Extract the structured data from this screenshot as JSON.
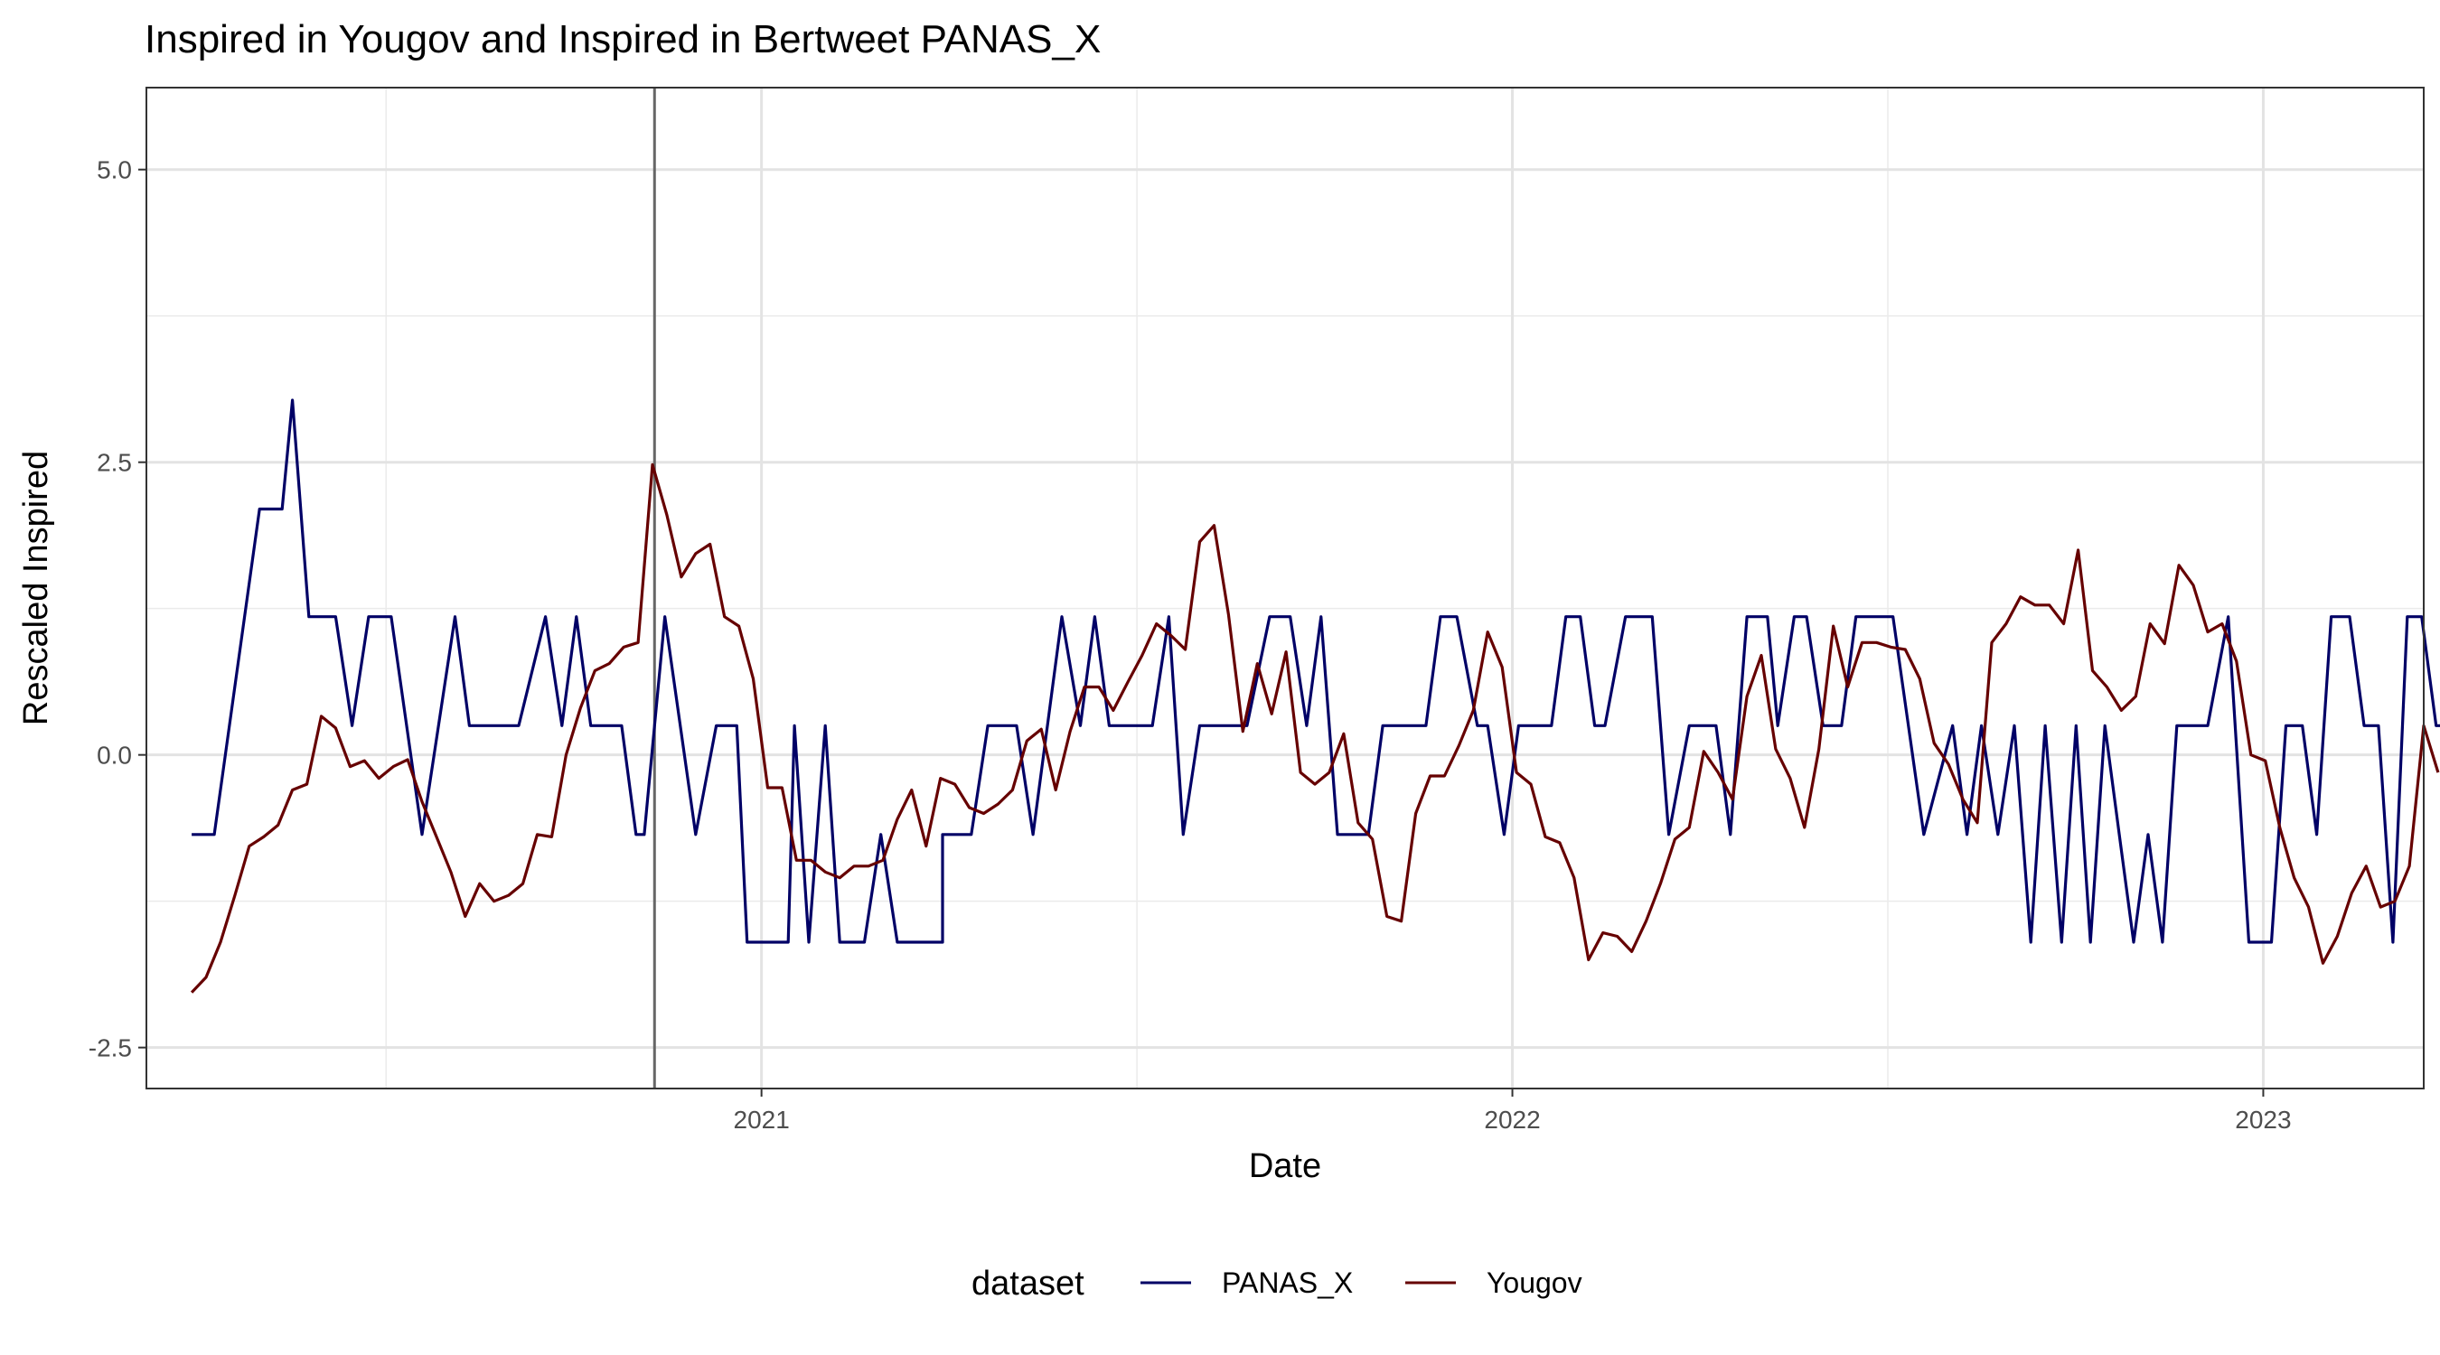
{
  "chart_data": {
    "type": "line",
    "title": "Inspired  in Yougov and  Inspired  in Bertweet   PANAS_X",
    "xlabel": "Date",
    "ylabel": "Rescaled  Inspired",
    "xlim": [
      "2020-03-08",
      "2023-03-20"
    ],
    "ylim": [
      -2.85,
      5.7
    ],
    "y_ticks": [
      5.0,
      2.5,
      0.0,
      -2.5
    ],
    "y_tick_labels": [
      "5.0",
      "2.5",
      "0.0",
      "-2.5"
    ],
    "x_ticks": [
      "2021-01-01",
      "2022-01-01",
      "2023-01-01"
    ],
    "x_tick_labels": [
      "2021",
      "2022",
      "2023"
    ],
    "grid": true,
    "vline": "2020-11-10",
    "legend": {
      "title": "dataset",
      "position": "bottom",
      "entries": [
        "PANAS_X",
        "Yougov"
      ]
    },
    "colors": {
      "PANAS_X": "#000066",
      "Yougov": "#660000",
      "vline": "#666666"
    },
    "series": [
      {
        "name": "PANAS_X",
        "points": [
          [
            "2020-03-30",
            -0.68
          ],
          [
            "2020-04-10",
            -0.68
          ],
          [
            "2020-05-02",
            2.1
          ],
          [
            "2020-05-13",
            2.1
          ],
          [
            "2020-05-18",
            3.03
          ],
          [
            "2020-05-26",
            1.18
          ],
          [
            "2020-06-08",
            1.18
          ],
          [
            "2020-06-16",
            0.25
          ],
          [
            "2020-06-24",
            1.18
          ],
          [
            "2020-07-05",
            1.18
          ],
          [
            "2020-07-20",
            -0.68
          ],
          [
            "2020-08-05",
            1.18
          ],
          [
            "2020-08-12",
            0.25
          ],
          [
            "2020-09-05",
            0.25
          ],
          [
            "2020-09-18",
            1.18
          ],
          [
            "2020-09-26",
            0.25
          ],
          [
            "2020-10-03",
            1.18
          ],
          [
            "2020-10-10",
            0.25
          ],
          [
            "2020-10-25",
            0.25
          ],
          [
            "2020-11-01",
            -0.68
          ],
          [
            "2020-11-05",
            -0.68
          ],
          [
            "2020-11-15",
            1.18
          ],
          [
            "2020-11-30",
            -0.68
          ],
          [
            "2020-12-10",
            0.25
          ],
          [
            "2020-12-20",
            0.25
          ],
          [
            "2020-12-25",
            -1.6
          ],
          [
            "2021-01-14",
            -1.6
          ],
          [
            "2021-01-17",
            0.25
          ],
          [
            "2021-01-24",
            -1.6
          ],
          [
            "2021-02-01",
            0.25
          ],
          [
            "2021-02-08",
            -1.6
          ],
          [
            "2021-02-20",
            -1.6
          ],
          [
            "2021-02-28",
            -0.68
          ],
          [
            "2021-03-08",
            -1.6
          ],
          [
            "2021-03-30",
            -1.6
          ],
          [
            "2021-03-30",
            -0.68
          ],
          [
            "2021-04-13",
            -0.68
          ],
          [
            "2021-04-21",
            0.25
          ],
          [
            "2021-05-05",
            0.25
          ],
          [
            "2021-05-13",
            -0.68
          ],
          [
            "2021-05-27",
            1.18
          ],
          [
            "2021-06-05",
            0.25
          ],
          [
            "2021-06-12",
            1.18
          ],
          [
            "2021-06-19",
            0.25
          ],
          [
            "2021-07-10",
            0.25
          ],
          [
            "2021-07-18",
            1.18
          ],
          [
            "2021-07-25",
            -0.68
          ],
          [
            "2021-08-02",
            0.25
          ],
          [
            "2021-08-25",
            0.25
          ],
          [
            "2021-09-05",
            1.18
          ],
          [
            "2021-09-15",
            1.18
          ],
          [
            "2021-09-23",
            0.25
          ],
          [
            "2021-09-30",
            1.18
          ],
          [
            "2021-10-08",
            -0.68
          ],
          [
            "2021-10-23",
            -0.68
          ],
          [
            "2021-10-30",
            0.25
          ],
          [
            "2021-11-20",
            0.25
          ],
          [
            "2021-11-27",
            1.18
          ],
          [
            "2021-12-05",
            1.18
          ],
          [
            "2021-12-15",
            0.25
          ],
          [
            "2021-12-20",
            0.25
          ],
          [
            "2021-12-28",
            -0.68
          ],
          [
            "2022-01-04",
            0.25
          ],
          [
            "2022-01-20",
            0.25
          ],
          [
            "2022-01-27",
            1.18
          ],
          [
            "2022-02-03",
            1.18
          ],
          [
            "2022-02-10",
            0.25
          ],
          [
            "2022-02-15",
            0.25
          ],
          [
            "2022-02-25",
            1.18
          ],
          [
            "2022-03-10",
            1.18
          ],
          [
            "2022-03-18",
            -0.68
          ],
          [
            "2022-03-28",
            0.25
          ],
          [
            "2022-04-10",
            0.25
          ],
          [
            "2022-04-17",
            -0.68
          ],
          [
            "2022-04-25",
            1.18
          ],
          [
            "2022-05-05",
            1.18
          ],
          [
            "2022-05-10",
            0.25
          ],
          [
            "2022-05-18",
            1.18
          ],
          [
            "2022-05-24",
            1.18
          ],
          [
            "2022-06-01",
            0.25
          ],
          [
            "2022-06-10",
            0.25
          ],
          [
            "2022-06-17",
            1.18
          ],
          [
            "2022-07-05",
            1.18
          ],
          [
            "2022-07-20",
            -0.68
          ],
          [
            "2022-08-03",
            0.25
          ],
          [
            "2022-08-10",
            -0.68
          ],
          [
            "2022-08-17",
            0.25
          ],
          [
            "2022-08-25",
            -0.68
          ],
          [
            "2022-09-02",
            0.25
          ],
          [
            "2022-09-10",
            -1.6
          ],
          [
            "2022-09-17",
            0.25
          ],
          [
            "2022-09-25",
            -1.6
          ],
          [
            "2022-10-02",
            0.25
          ],
          [
            "2022-10-09",
            -1.6
          ],
          [
            "2022-10-16",
            0.25
          ],
          [
            "2022-10-23",
            -0.68
          ],
          [
            "2022-10-30",
            -1.6
          ],
          [
            "2022-11-06",
            -0.68
          ],
          [
            "2022-11-13",
            -1.6
          ],
          [
            "2022-11-20",
            0.25
          ],
          [
            "2022-12-05",
            0.25
          ],
          [
            "2022-12-15",
            1.18
          ],
          [
            "2022-12-25",
            -1.6
          ],
          [
            "2023-01-05",
            -1.6
          ],
          [
            "2023-01-12",
            0.25
          ],
          [
            "2023-01-20",
            0.25
          ],
          [
            "2023-01-27",
            -0.68
          ],
          [
            "2023-02-03",
            1.18
          ],
          [
            "2023-02-12",
            1.18
          ],
          [
            "2023-02-19",
            0.25
          ],
          [
            "2023-02-26",
            0.25
          ],
          [
            "2023-03-05",
            -1.6
          ],
          [
            "2023-03-12",
            1.18
          ],
          [
            "2023-03-19",
            1.18
          ],
          [
            "2023-03-26",
            0.25
          ],
          [
            "2023-04-05",
            0.25
          ]
        ]
      },
      {
        "name": "Yougov",
        "points": [
          [
            "2020-03-30",
            -2.03
          ],
          [
            "2020-04-06",
            -1.9
          ],
          [
            "2020-04-13",
            -1.6
          ],
          [
            "2020-04-20",
            -1.2
          ],
          [
            "2020-04-27",
            -0.78
          ],
          [
            "2020-05-04",
            -0.7
          ],
          [
            "2020-05-11",
            -0.6
          ],
          [
            "2020-05-18",
            -0.3
          ],
          [
            "2020-05-25",
            -0.25
          ],
          [
            "2020-06-01",
            0.33
          ],
          [
            "2020-06-08",
            0.23
          ],
          [
            "2020-06-15",
            -0.1
          ],
          [
            "2020-06-22",
            -0.05
          ],
          [
            "2020-06-29",
            -0.2
          ],
          [
            "2020-07-06",
            -0.1
          ],
          [
            "2020-07-13",
            -0.04
          ],
          [
            "2020-07-20",
            -0.4
          ],
          [
            "2020-07-27",
            -0.7
          ],
          [
            "2020-08-03",
            -1.0
          ],
          [
            "2020-08-10",
            -1.38
          ],
          [
            "2020-08-17",
            -1.1
          ],
          [
            "2020-08-24",
            -1.25
          ],
          [
            "2020-08-31",
            -1.2
          ],
          [
            "2020-09-07",
            -1.1
          ],
          [
            "2020-09-14",
            -0.68
          ],
          [
            "2020-09-21",
            -0.7
          ],
          [
            "2020-09-28",
            0.0
          ],
          [
            "2020-10-05",
            0.4
          ],
          [
            "2020-10-12",
            0.72
          ],
          [
            "2020-10-19",
            0.78
          ],
          [
            "2020-10-26",
            0.92
          ],
          [
            "2020-11-02",
            0.96
          ],
          [
            "2020-11-09",
            2.48
          ],
          [
            "2020-11-16",
            2.05
          ],
          [
            "2020-11-23",
            1.52
          ],
          [
            "2020-11-30",
            1.72
          ],
          [
            "2020-12-07",
            1.8
          ],
          [
            "2020-12-14",
            1.18
          ],
          [
            "2020-12-21",
            1.1
          ],
          [
            "2020-12-28",
            0.65
          ],
          [
            "2021-01-04",
            -0.28
          ],
          [
            "2021-01-11",
            -0.28
          ],
          [
            "2021-01-18",
            -0.9
          ],
          [
            "2021-01-25",
            -0.9
          ],
          [
            "2021-02-01",
            -1.0
          ],
          [
            "2021-02-08",
            -1.05
          ],
          [
            "2021-02-15",
            -0.95
          ],
          [
            "2021-02-22",
            -0.95
          ],
          [
            "2021-03-01",
            -0.9
          ],
          [
            "2021-03-08",
            -0.55
          ],
          [
            "2021-03-15",
            -0.3
          ],
          [
            "2021-03-22",
            -0.78
          ],
          [
            "2021-03-29",
            -0.2
          ],
          [
            "2021-04-05",
            -0.25
          ],
          [
            "2021-04-12",
            -0.45
          ],
          [
            "2021-04-19",
            -0.5
          ],
          [
            "2021-04-26",
            -0.42
          ],
          [
            "2021-05-03",
            -0.3
          ],
          [
            "2021-05-10",
            0.12
          ],
          [
            "2021-05-17",
            0.22
          ],
          [
            "2021-05-24",
            -0.3
          ],
          [
            "2021-05-31",
            0.2
          ],
          [
            "2021-06-07",
            0.58
          ],
          [
            "2021-06-14",
            0.58
          ],
          [
            "2021-06-21",
            0.38
          ],
          [
            "2021-06-28",
            0.62
          ],
          [
            "2021-07-05",
            0.85
          ],
          [
            "2021-07-12",
            1.12
          ],
          [
            "2021-07-19",
            1.02
          ],
          [
            "2021-07-26",
            0.9
          ],
          [
            "2021-08-02",
            1.82
          ],
          [
            "2021-08-09",
            1.96
          ],
          [
            "2021-08-16",
            1.2
          ],
          [
            "2021-08-23",
            0.2
          ],
          [
            "2021-08-30",
            0.78
          ],
          [
            "2021-09-06",
            0.35
          ],
          [
            "2021-09-13",
            0.88
          ],
          [
            "2021-09-20",
            -0.15
          ],
          [
            "2021-09-27",
            -0.25
          ],
          [
            "2021-10-04",
            -0.15
          ],
          [
            "2021-10-11",
            0.18
          ],
          [
            "2021-10-18",
            -0.58
          ],
          [
            "2021-10-25",
            -0.72
          ],
          [
            "2021-11-01",
            -1.38
          ],
          [
            "2021-11-08",
            -1.42
          ],
          [
            "2021-11-15",
            -0.5
          ],
          [
            "2021-11-22",
            -0.18
          ],
          [
            "2021-11-29",
            -0.18
          ],
          [
            "2021-12-06",
            0.08
          ],
          [
            "2021-12-13",
            0.38
          ],
          [
            "2021-12-20",
            1.05
          ],
          [
            "2021-12-27",
            0.75
          ],
          [
            "2022-01-03",
            -0.15
          ],
          [
            "2022-01-10",
            -0.25
          ],
          [
            "2022-01-17",
            -0.7
          ],
          [
            "2022-01-24",
            -0.75
          ],
          [
            "2022-01-31",
            -1.05
          ],
          [
            "2022-02-07",
            -1.75
          ],
          [
            "2022-02-14",
            -1.52
          ],
          [
            "2022-02-21",
            -1.55
          ],
          [
            "2022-02-28",
            -1.68
          ],
          [
            "2022-03-07",
            -1.42
          ],
          [
            "2022-03-14",
            -1.1
          ],
          [
            "2022-03-21",
            -0.72
          ],
          [
            "2022-03-28",
            -0.62
          ],
          [
            "2022-04-04",
            0.03
          ],
          [
            "2022-04-11",
            -0.15
          ],
          [
            "2022-04-18",
            -0.38
          ],
          [
            "2022-04-25",
            0.5
          ],
          [
            "2022-05-02",
            0.85
          ],
          [
            "2022-05-09",
            0.05
          ],
          [
            "2022-05-16",
            -0.2
          ],
          [
            "2022-05-23",
            -0.62
          ],
          [
            "2022-05-30",
            0.05
          ],
          [
            "2022-06-06",
            1.1
          ],
          [
            "2022-06-13",
            0.58
          ],
          [
            "2022-06-20",
            0.96
          ],
          [
            "2022-06-27",
            0.96
          ],
          [
            "2022-07-04",
            0.92
          ],
          [
            "2022-07-11",
            0.9
          ],
          [
            "2022-07-18",
            0.65
          ],
          [
            "2022-07-25",
            0.1
          ],
          [
            "2022-08-01",
            -0.08
          ],
          [
            "2022-08-08",
            -0.38
          ],
          [
            "2022-08-15",
            -0.58
          ],
          [
            "2022-08-22",
            0.96
          ],
          [
            "2022-08-29",
            1.12
          ],
          [
            "2022-09-05",
            1.35
          ],
          [
            "2022-09-12",
            1.28
          ],
          [
            "2022-09-19",
            1.28
          ],
          [
            "2022-09-26",
            1.12
          ],
          [
            "2022-10-03",
            1.75
          ],
          [
            "2022-10-10",
            0.72
          ],
          [
            "2022-10-17",
            0.58
          ],
          [
            "2022-10-24",
            0.38
          ],
          [
            "2022-10-31",
            0.5
          ],
          [
            "2022-11-07",
            1.12
          ],
          [
            "2022-11-14",
            0.95
          ],
          [
            "2022-11-21",
            1.62
          ],
          [
            "2022-11-28",
            1.45
          ],
          [
            "2022-12-05",
            1.05
          ],
          [
            "2022-12-12",
            1.12
          ],
          [
            "2022-12-19",
            0.8
          ],
          [
            "2022-12-26",
            0.0
          ],
          [
            "2023-01-02",
            -0.05
          ],
          [
            "2023-01-09",
            -0.62
          ],
          [
            "2023-01-16",
            -1.05
          ],
          [
            "2023-01-23",
            -1.3
          ],
          [
            "2023-01-30",
            -1.78
          ],
          [
            "2023-02-06",
            -1.55
          ],
          [
            "2023-02-13",
            -1.18
          ],
          [
            "2023-02-20",
            -0.95
          ],
          [
            "2023-02-27",
            -1.3
          ],
          [
            "2023-03-06",
            -1.25
          ],
          [
            "2023-03-13",
            -0.95
          ],
          [
            "2023-03-20",
            0.25
          ],
          [
            "2023-03-27",
            -0.15
          ]
        ]
      }
    ]
  }
}
